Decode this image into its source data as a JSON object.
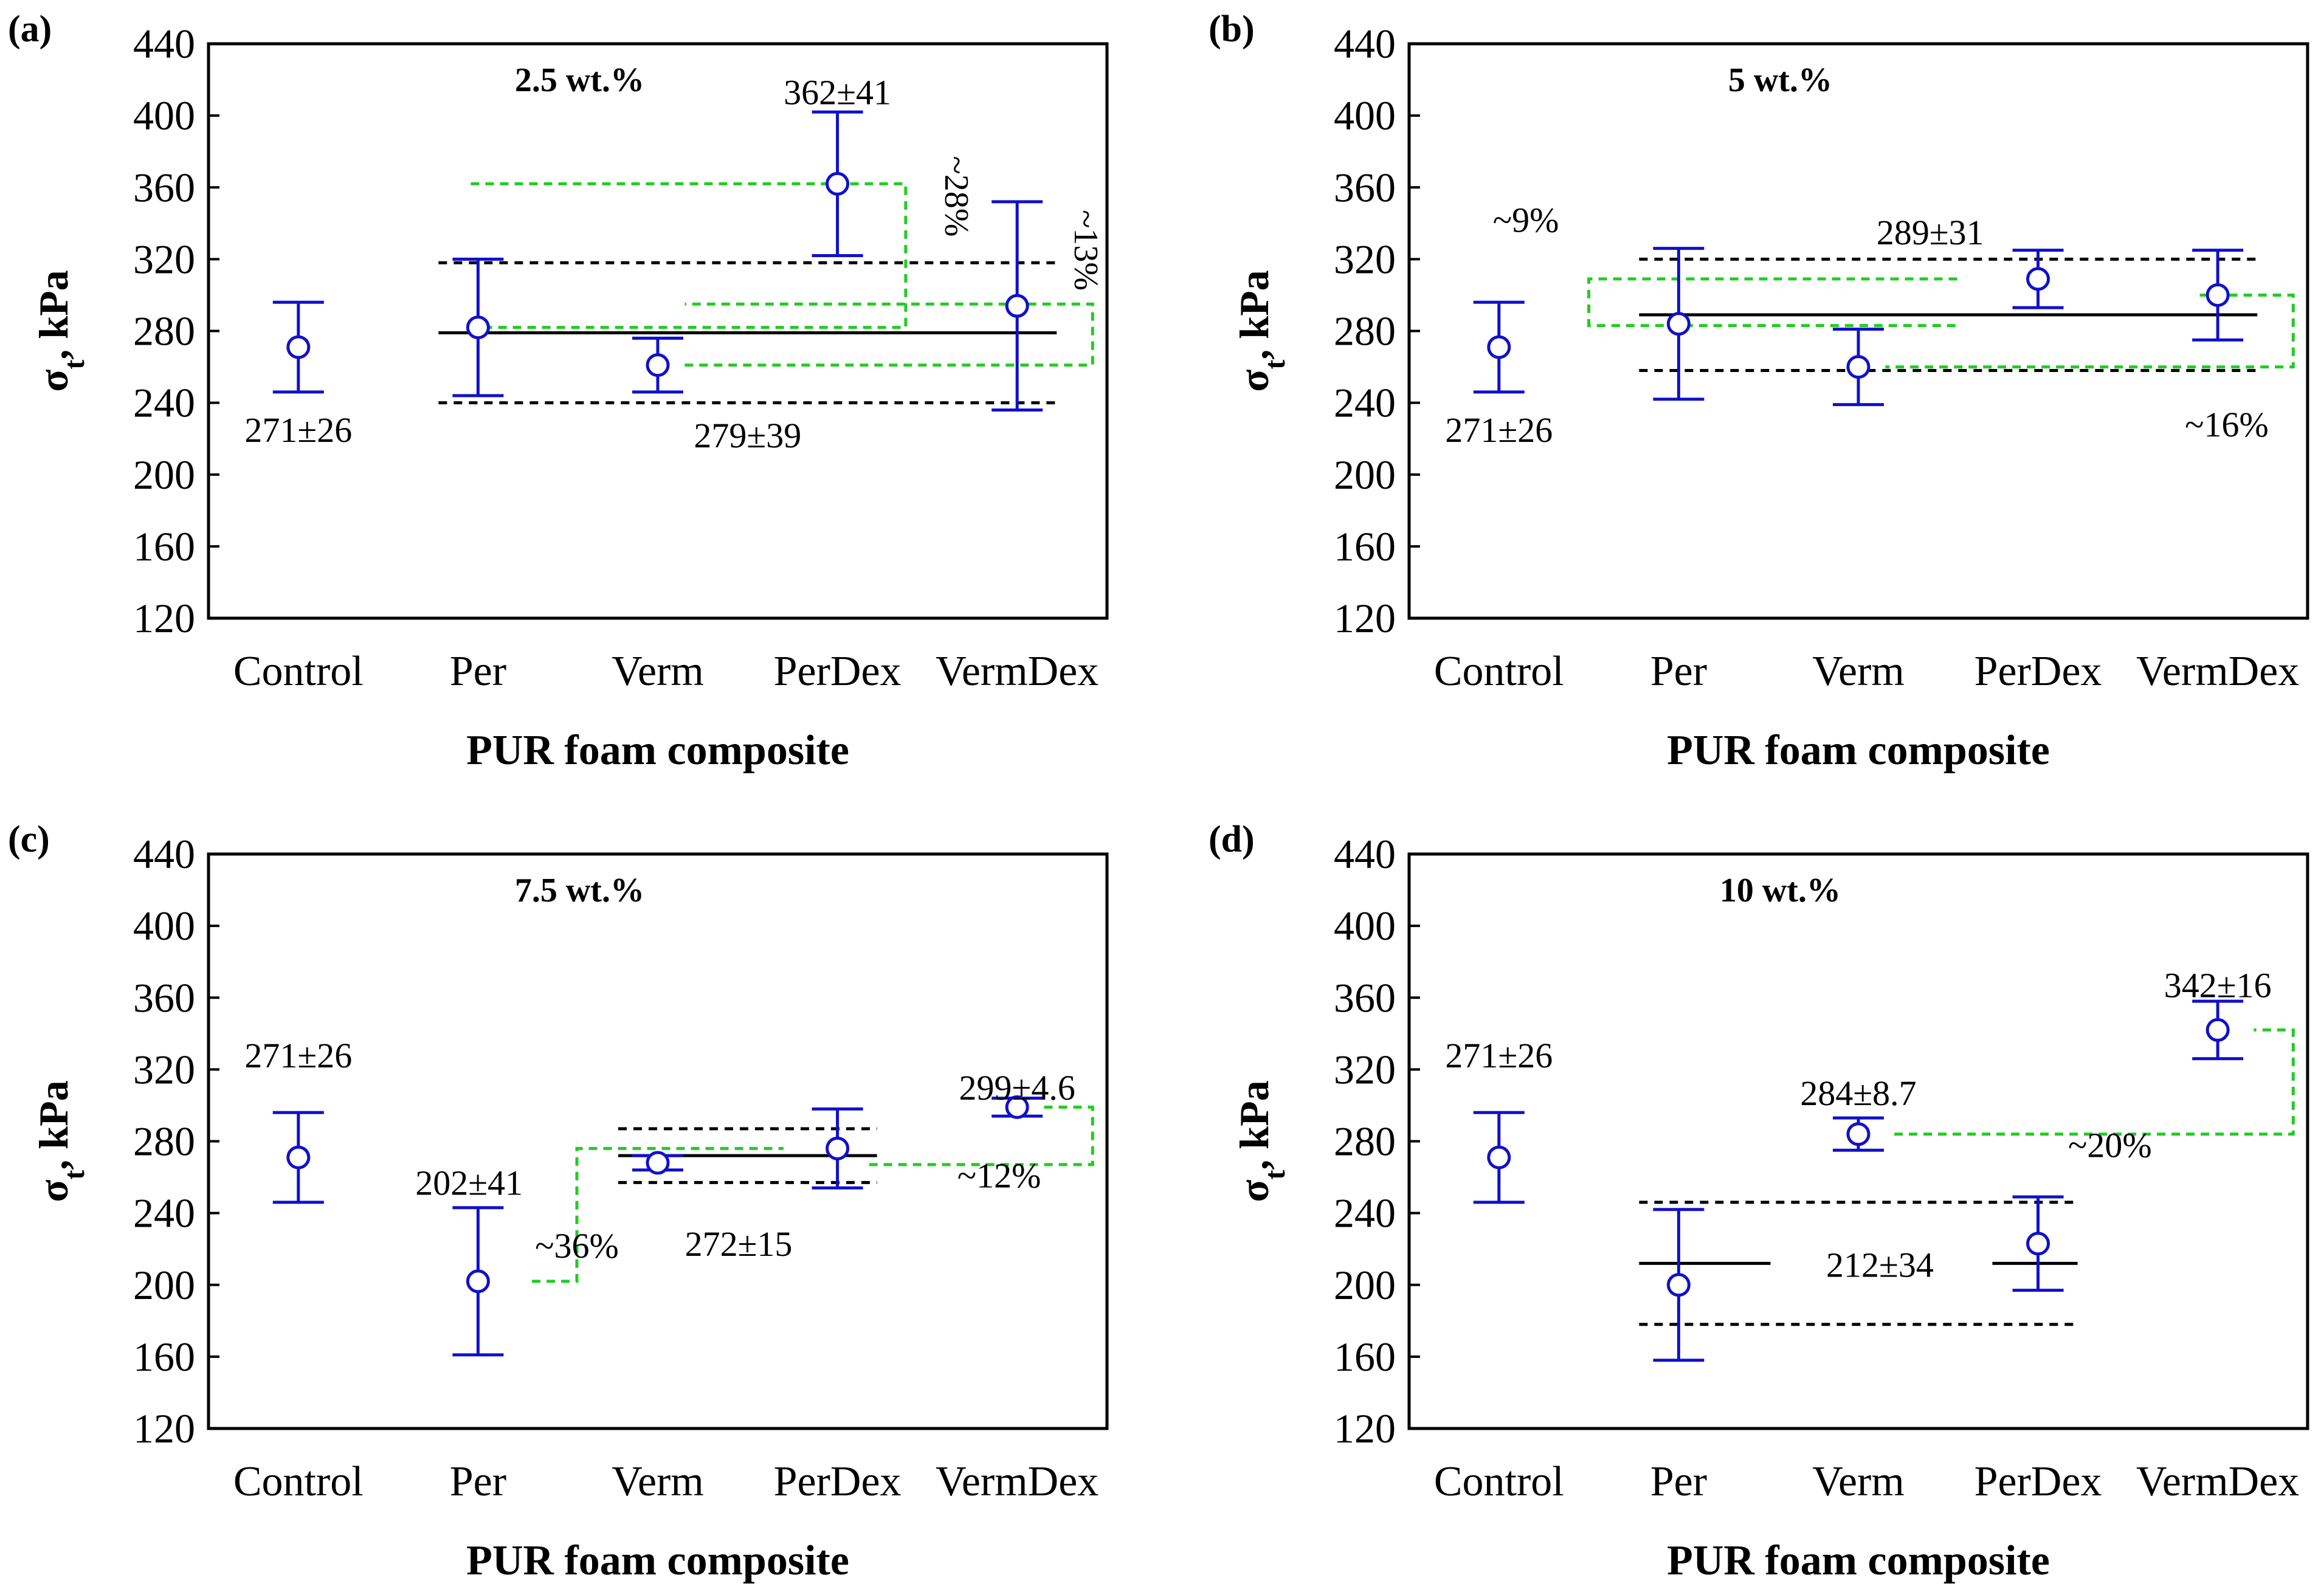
{
  "chart_data": [
    {
      "type": "scatter",
      "panel_label": "(a)",
      "title": "2.5 wt.%",
      "xlabel": "PUR foam composite",
      "ylabel_main": "σ",
      "ylabel_sub": "t",
      "ylabel_rest": ", kPa",
      "categories": [
        "Control",
        "Per",
        "Verm",
        "PerDex",
        "VermDex"
      ],
      "ylim": [
        120,
        440
      ],
      "yticks": [
        120,
        160,
        200,
        240,
        280,
        320,
        360,
        400,
        440
      ],
      "ytick_labels": [
        "120",
        "160",
        "200",
        "240",
        "280",
        "320",
        "360",
        "400",
        "440"
      ],
      "series": [
        {
          "means": [
            271,
            282,
            261,
            362,
            294
          ],
          "errors": [
            25,
            38,
            15,
            40,
            58
          ]
        }
      ],
      "colors": {
        "points": "#1010cc",
        "mean_line": "#000000",
        "bracket": "#22cc22"
      },
      "mean": {
        "value": 279,
        "lower": 240,
        "upper": 318,
        "from": "Per",
        "to": "VermDex"
      },
      "labels": [
        {
          "text": "271±26",
          "cat": 0,
          "y": 225
        },
        {
          "text": "279±39",
          "cat": 2.5,
          "y": 222
        },
        {
          "text": "362±41",
          "cat": 3,
          "y": 413
        }
      ],
      "brackets": [
        {
          "from": 282,
          "to": 362,
          "start_cat": 0.95,
          "cat": 3.38,
          "text": "~28%",
          "text_cat": 3.6,
          "text_y": 355,
          "rotate": true
        },
        {
          "from": 261,
          "to": 295,
          "start_cat": 2.15,
          "cat": 4.42,
          "text": "~13%",
          "text_cat": 4.32,
          "text_y": 325,
          "rotate": true
        }
      ]
    },
    {
      "type": "scatter",
      "panel_label": "(b)",
      "title": "5 wt.%",
      "xlabel": "PUR foam composite",
      "ylabel_main": "σ",
      "ylabel_sub": "t",
      "ylabel_rest": ", kPa",
      "categories": [
        "Control",
        "Per",
        "Verm",
        "PerDex",
        "VermDex"
      ],
      "ylim": [
        120,
        440
      ],
      "yticks": [
        120,
        160,
        200,
        240,
        280,
        320,
        360,
        400,
        440
      ],
      "ytick_labels": [
        "120",
        "160",
        "200",
        "240",
        "280",
        "320",
        "360",
        "400",
        "440"
      ],
      "series": [
        {
          "means": [
            271,
            284,
            260,
            309,
            300
          ],
          "errors": [
            25,
            42,
            21,
            16,
            25
          ]
        }
      ],
      "colors": {
        "points": "#1010cc",
        "mean_line": "#000000",
        "bracket": "#22cc22"
      },
      "mean": {
        "value": 289,
        "lower": 258,
        "upper": 320,
        "from": "Per",
        "to": "VermDex"
      },
      "labels": [
        {
          "text": "271±26",
          "cat": 0,
          "y": 225
        },
        {
          "text": "289±31",
          "cat": 2.4,
          "y": 335
        },
        {
          "text": "~9%",
          "cat": 0.15,
          "y": 342
        },
        {
          "text": "~16%",
          "cat": 4.05,
          "y": 228
        }
      ],
      "brackets": [
        {
          "from": 309,
          "to": 283,
          "start_cat": 2.55,
          "cat": 0.5,
          "text": "",
          "text_cat": 0,
          "text_y": 0,
          "rotate": false
        },
        {
          "from": 300,
          "to": 260,
          "start_cat": 3.9,
          "cat": 4.42,
          "end_cat": 2.15,
          "text": "",
          "text_cat": 0,
          "text_y": 0,
          "rotate": false
        }
      ]
    },
    {
      "type": "scatter",
      "panel_label": "(c)",
      "title": "7.5 wt.%",
      "xlabel": "PUR foam composite",
      "ylabel_main": "σ",
      "ylabel_sub": "t",
      "ylabel_rest": ", kPa",
      "categories": [
        "Control",
        "Per",
        "Verm",
        "PerDex",
        "VermDex"
      ],
      "ylim": [
        120,
        440
      ],
      "yticks": [
        120,
        160,
        200,
        240,
        280,
        320,
        360,
        400,
        440
      ],
      "ytick_labels": [
        "120",
        "160",
        "200",
        "240",
        "280",
        "320",
        "360",
        "400",
        "440"
      ],
      "series": [
        {
          "means": [
            271,
            202,
            268,
            276,
            299
          ],
          "errors": [
            25,
            41,
            4,
            22,
            5
          ]
        }
      ],
      "colors": {
        "points": "#1010cc",
        "mean_line": "#000000",
        "bracket": "#22cc22"
      },
      "mean": {
        "value": 272,
        "lower": 257,
        "upper": 287,
        "from": "Verm",
        "to": "PerDex"
      },
      "labels": [
        {
          "text": "271±26",
          "cat": 0,
          "y": 328
        },
        {
          "text": "202±41",
          "cat": 0.95,
          "y": 257
        },
        {
          "text": "272±15",
          "cat": 2.45,
          "y": 223
        },
        {
          "text": "299±4.6",
          "cat": 4,
          "y": 310
        },
        {
          "text": "~36%",
          "cat": 1.55,
          "y": 222
        },
        {
          "text": "~12%",
          "cat": 3.9,
          "y": 261
        }
      ],
      "brackets": [
        {
          "from": 202,
          "to": 276,
          "start_cat": 1.3,
          "cat": 1.55,
          "end_cat": 2.7,
          "text": "",
          "text_cat": 0,
          "text_y": 0,
          "rotate": false
        },
        {
          "from": 299,
          "to": 267,
          "start_cat": 4.15,
          "cat": 4.42,
          "end_cat": 3.15,
          "text": "",
          "text_cat": 0,
          "text_y": 0,
          "rotate": false
        }
      ]
    },
    {
      "type": "scatter",
      "panel_label": "(d)",
      "title": "10 wt.%",
      "xlabel": "PUR foam composite",
      "ylabel_main": "σ",
      "ylabel_sub": "t",
      "ylabel_rest": ", kPa",
      "categories": [
        "Control",
        "Per",
        "Verm",
        "PerDex",
        "VermDex"
      ],
      "ylim": [
        120,
        440
      ],
      "yticks": [
        120,
        160,
        200,
        240,
        280,
        320,
        360,
        400,
        440
      ],
      "ytick_labels": [
        "120",
        "160",
        "200",
        "240",
        "280",
        "320",
        "360",
        "400",
        "440"
      ],
      "series": [
        {
          "means": [
            271,
            200,
            284,
            223,
            342
          ],
          "errors": [
            25,
            42,
            9,
            26,
            16
          ]
        }
      ],
      "colors": {
        "points": "#1010cc",
        "mean_line": "#000000",
        "bracket": "#22cc22"
      },
      "mean": {
        "value": 212,
        "lower": 178,
        "upper": 246,
        "from": "Per",
        "to": "PerDex",
        "gap_text": "212±34"
      },
      "labels": [
        {
          "text": "271±26",
          "cat": 0,
          "y": 328
        },
        {
          "text": "284±8.7",
          "cat": 2,
          "y": 307
        },
        {
          "text": "342±16",
          "cat": 4,
          "y": 367
        },
        {
          "text": "~20%",
          "cat": 3.4,
          "y": 278
        }
      ],
      "brackets": [
        {
          "from": 284,
          "to": 342,
          "start_cat": 2.2,
          "cat": 4.42,
          "end_cat": 4.2,
          "text": "",
          "text_cat": 0,
          "text_y": 0,
          "rotate": false
        }
      ]
    }
  ]
}
